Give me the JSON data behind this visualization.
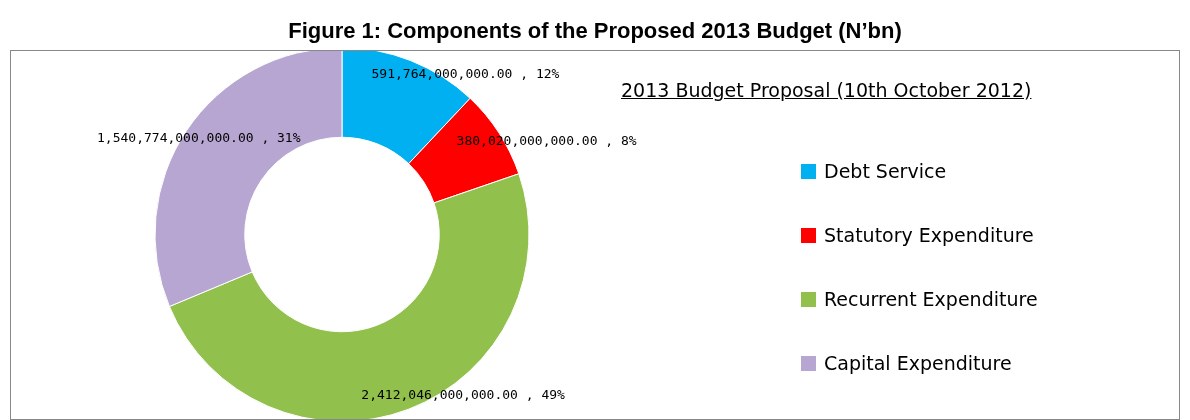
{
  "chart_data": {
    "type": "donut",
    "title": "Figure 1: Components of the Proposed 2013 Budget (N’bn)",
    "subtitle": "2013 Budget Proposal (10th October 2012)",
    "categories": [
      "Debt Service",
      "Statutory Expenditure",
      "Recurrent Expenditure",
      "Capital Expenditure"
    ],
    "values": [
      591764000000,
      380020000000,
      2412046000000,
      1540774000000
    ],
    "colors": [
      "#00b0f0",
      "#ff0000",
      "#92c04c",
      "#b8a6d2"
    ],
    "value_labels": [
      "591,764,000,000.00 , 12%",
      "380,020,000,000.00 , 8%",
      "2,412,046,000,000.00 , 49%",
      "1,540,774,000,000.00 , 31%"
    ],
    "legend": "right"
  }
}
